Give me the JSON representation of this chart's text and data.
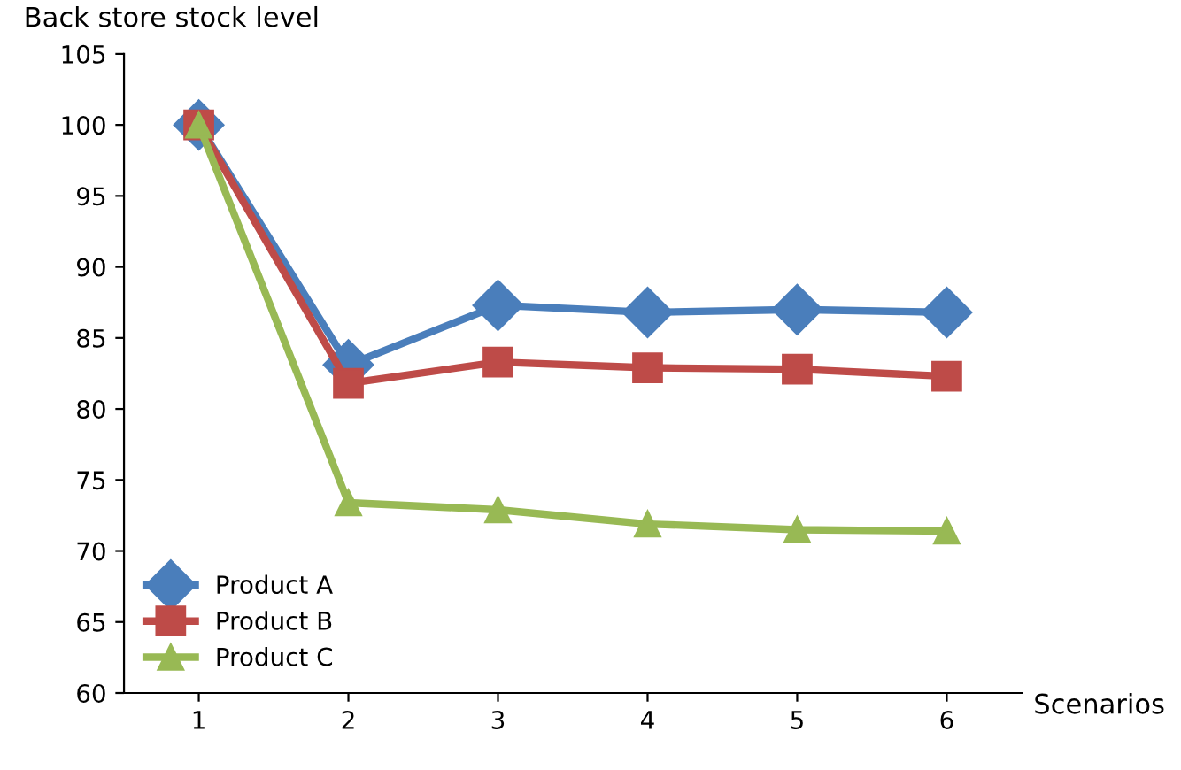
{
  "chart_data": {
    "type": "line",
    "ylabel": "Back store stock level",
    "xlabel": "Scenarios",
    "categories": [
      "1",
      "2",
      "3",
      "4",
      "5",
      "6"
    ],
    "series": [
      {
        "name": "Product A",
        "color": "#4a7ebb",
        "marker": "diamond",
        "values": [
          100,
          83.1,
          87.3,
          86.8,
          87.0,
          86.8
        ]
      },
      {
        "name": "Product B",
        "color": "#be4b48",
        "marker": "square",
        "values": [
          100,
          81.8,
          83.3,
          82.9,
          82.8,
          82.3
        ]
      },
      {
        "name": "Product C",
        "color": "#98b954",
        "marker": "triangle",
        "values": [
          100,
          73.4,
          72.9,
          71.9,
          71.5,
          71.4
        ]
      }
    ],
    "ylim": [
      60,
      105
    ],
    "yticks": [
      60,
      65,
      70,
      75,
      80,
      85,
      90,
      95,
      100,
      105
    ],
    "grid": false,
    "legend": "bottom left",
    "line_style": "solid"
  }
}
